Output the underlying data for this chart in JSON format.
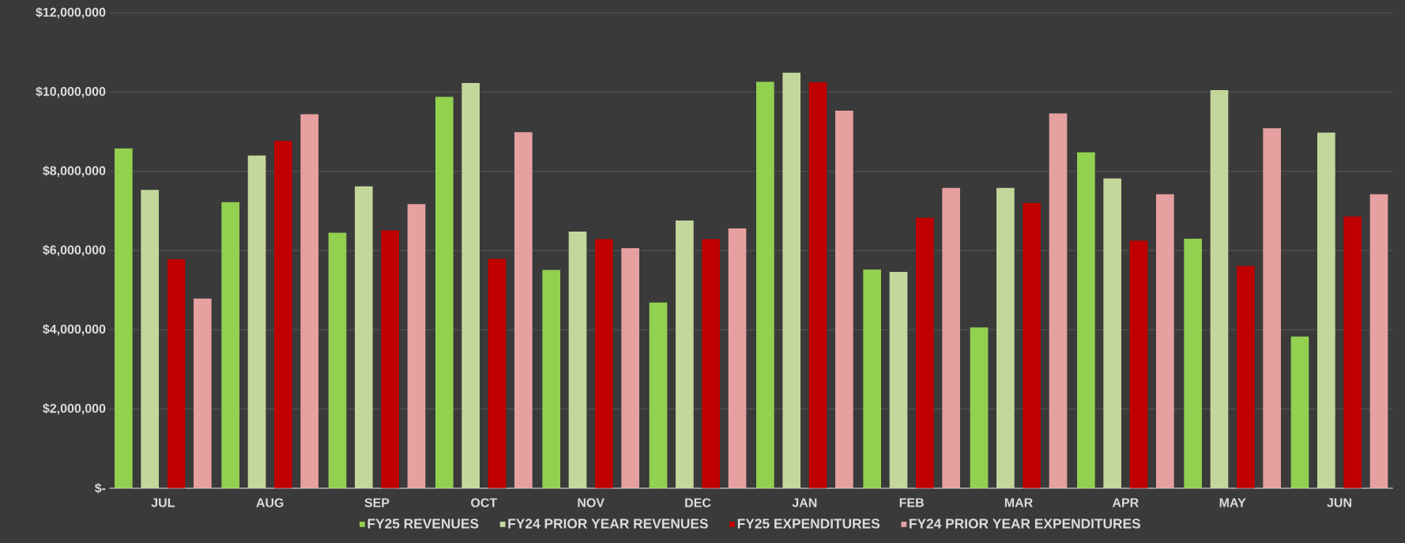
{
  "chart_data": {
    "type": "bar",
    "categories": [
      "JUL",
      "AUG",
      "SEP",
      "OCT",
      "NOV",
      "DEC",
      "JAN",
      "FEB",
      "MAR",
      "APR",
      "MAY",
      "JUN"
    ],
    "series": [
      {
        "name": "FY25 REVENUES",
        "color": "#92d050",
        "values": [
          8580000,
          7220000,
          6450000,
          9880000,
          5510000,
          4690000,
          10260000,
          5520000,
          4060000,
          8480000,
          6300000,
          3830000
        ]
      },
      {
        "name": "FY24 PRIOR YEAR REVENUES",
        "color": "#c4d79b",
        "values": [
          7530000,
          8400000,
          7620000,
          10230000,
          6480000,
          6760000,
          10490000,
          5460000,
          7580000,
          7820000,
          10050000,
          8980000
        ]
      },
      {
        "name": "FY25 EXPENDITURES",
        "color": "#c00000",
        "values": [
          5780000,
          8770000,
          6510000,
          5790000,
          6290000,
          6290000,
          10250000,
          6830000,
          7200000,
          6250000,
          5610000,
          6860000
        ]
      },
      {
        "name": "FY24 PRIOR YEAR EXPENDITURES",
        "color": "#e6a0a0",
        "values": [
          4790000,
          9440000,
          7170000,
          8990000,
          6060000,
          6560000,
          9530000,
          7580000,
          9460000,
          7420000,
          9090000,
          7420000
        ]
      }
    ],
    "ylim": [
      0,
      12000000
    ],
    "yticks": [
      {
        "value": 0,
        "label": "$-"
      },
      {
        "value": 2000000,
        "label": "$2,000,000"
      },
      {
        "value": 4000000,
        "label": "$4,000,000"
      },
      {
        "value": 6000000,
        "label": "$6,000,000"
      },
      {
        "value": 8000000,
        "label": "$8,000,000"
      },
      {
        "value": 10000000,
        "label": "$10,000,000"
      },
      {
        "value": 12000000,
        "label": "$12,000,000"
      }
    ],
    "grid": "y",
    "legend": "bottom"
  }
}
